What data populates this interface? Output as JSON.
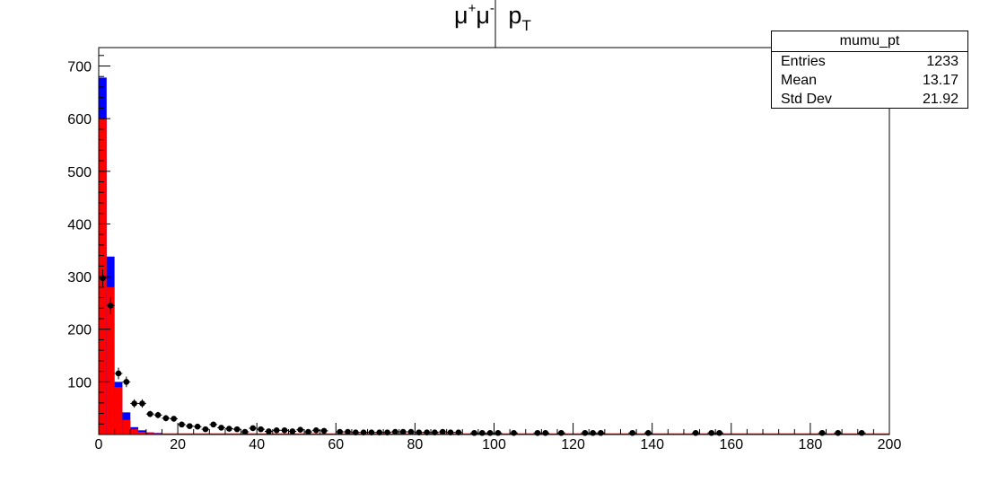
{
  "title": {
    "base": "μ",
    "sup1": "+",
    "mid": "μ",
    "sup2": "-",
    "p": "p",
    "sub": "T"
  },
  "stats_box": {
    "name": "mumu_pt",
    "rows": [
      {
        "label": "Entries",
        "value": "1233"
      },
      {
        "label": "Mean",
        "value": "13.17"
      },
      {
        "label": "Std Dev",
        "value": "21.92"
      }
    ]
  },
  "chart_data": {
    "type": "bar",
    "xlim": [
      0,
      200
    ],
    "ylim": [
      0,
      735
    ],
    "bin_width": 2,
    "x_tick_labels": [
      "0",
      "20",
      "40",
      "60",
      "80",
      "100",
      "120",
      "140",
      "160",
      "180",
      "200"
    ],
    "y_tick_labels": [
      "100",
      "200",
      "300",
      "400",
      "500",
      "600",
      "700"
    ],
    "grid": false,
    "legend": "none",
    "colors": {
      "stack_bottom": "#ff0000",
      "stack_top": "#0000ff",
      "points": "#000000"
    },
    "series": [
      {
        "style": "stacked-bottom",
        "values": [
          600,
          280,
          90,
          28,
          10,
          5,
          3,
          2,
          1,
          0
        ]
      },
      {
        "style": "stacked-top",
        "values": [
          78,
          58,
          10,
          14,
          4,
          3,
          1,
          1,
          0,
          0
        ]
      },
      {
        "style": "points",
        "points": [
          [
            1,
            297,
            17
          ],
          [
            3,
            245,
            16
          ],
          [
            5,
            116,
            11
          ],
          [
            7,
            100,
            10
          ],
          [
            9,
            59,
            8
          ],
          [
            11,
            59,
            8
          ],
          [
            13,
            39,
            6
          ],
          [
            15,
            37,
            6
          ],
          [
            17,
            31,
            6
          ],
          [
            19,
            30,
            5
          ],
          [
            21,
            19,
            4
          ],
          [
            23,
            16,
            4
          ],
          [
            25,
            15,
            4
          ],
          [
            27,
            10,
            3
          ],
          [
            29,
            19,
            4
          ],
          [
            31,
            13,
            4
          ],
          [
            33,
            11,
            3
          ],
          [
            35,
            10,
            3
          ],
          [
            37,
            5,
            2
          ],
          [
            39,
            12,
            3
          ],
          [
            41,
            10,
            3
          ],
          [
            43,
            6,
            2
          ],
          [
            45,
            8,
            3
          ],
          [
            47,
            8,
            3
          ],
          [
            49,
            6,
            2
          ],
          [
            51,
            9,
            3
          ],
          [
            53,
            5,
            2
          ],
          [
            55,
            8,
            3
          ],
          [
            57,
            7,
            3
          ],
          [
            61,
            5,
            2
          ],
          [
            63,
            5,
            2
          ],
          [
            65,
            4,
            2
          ],
          [
            67,
            4,
            2
          ],
          [
            69,
            4,
            2
          ],
          [
            71,
            4,
            2
          ],
          [
            73,
            4,
            2
          ],
          [
            75,
            5,
            2
          ],
          [
            77,
            5,
            2
          ],
          [
            79,
            5,
            2
          ],
          [
            81,
            4,
            2
          ],
          [
            83,
            4,
            2
          ],
          [
            85,
            4,
            2
          ],
          [
            87,
            5,
            2
          ],
          [
            89,
            4,
            2
          ],
          [
            91,
            4,
            2
          ],
          [
            95,
            3,
            2
          ],
          [
            97,
            3,
            2
          ],
          [
            99,
            3,
            2
          ],
          [
            101,
            3,
            2
          ],
          [
            105,
            3,
            2
          ],
          [
            111,
            3,
            2
          ],
          [
            113,
            3,
            2
          ],
          [
            117,
            3,
            2
          ],
          [
            123,
            3,
            2
          ],
          [
            125,
            3,
            2
          ],
          [
            127,
            3,
            2
          ],
          [
            135,
            3,
            2
          ],
          [
            139,
            3,
            2
          ],
          [
            151,
            3,
            2
          ],
          [
            155,
            3,
            2
          ],
          [
            157,
            3,
            2
          ],
          [
            183,
            3,
            2
          ],
          [
            187,
            3,
            2
          ],
          [
            193,
            3,
            2
          ]
        ]
      }
    ]
  }
}
